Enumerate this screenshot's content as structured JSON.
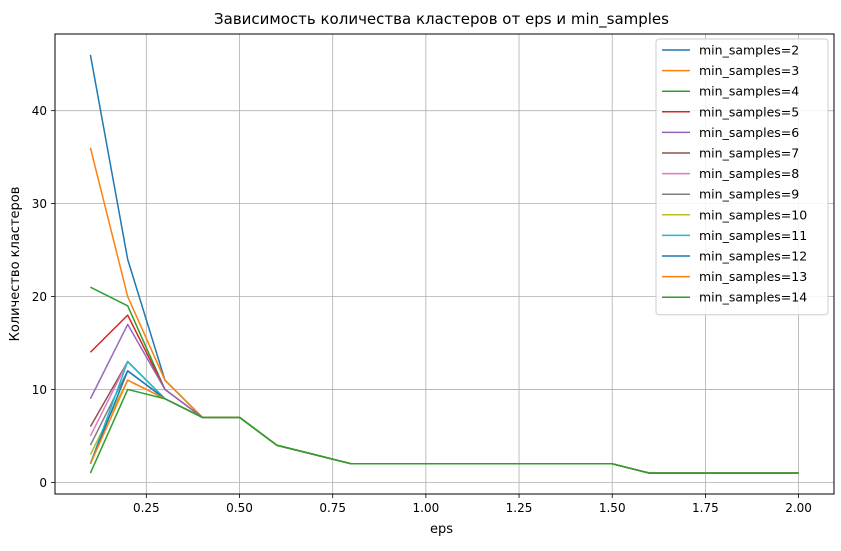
{
  "chart_data": {
    "type": "line",
    "title": "Зависимость количества кластеров от eps и min_samples",
    "xlabel": "eps",
    "ylabel": "Количество кластеров",
    "xlim": [
      0.005,
      2.095
    ],
    "ylim": [
      -1.25,
      48.25
    ],
    "xticks": [
      0.25,
      0.5,
      0.75,
      1.0,
      1.25,
      1.5,
      1.75,
      2.0
    ],
    "xtick_labels": [
      "0.25",
      "0.50",
      "0.75",
      "1.00",
      "1.25",
      "1.50",
      "1.75",
      "2.00"
    ],
    "yticks": [
      0,
      10,
      20,
      30,
      40
    ],
    "ytick_labels": [
      "0",
      "10",
      "20",
      "30",
      "40"
    ],
    "grid": true,
    "legend_position": "top-right",
    "x": [
      0.1,
      0.2,
      0.3,
      0.4,
      0.5,
      0.6,
      0.7,
      0.8,
      0.9,
      1.0,
      1.1,
      1.2,
      1.3,
      1.4,
      1.5,
      1.6,
      1.7,
      1.8,
      1.9,
      2.0
    ],
    "series": [
      {
        "name": "min_samples=2",
        "color": "#1f77b4",
        "values": [
          46,
          24,
          11,
          7,
          7,
          4,
          3,
          2,
          2,
          2,
          2,
          2,
          2,
          2,
          2,
          1,
          1,
          1,
          1,
          1
        ]
      },
      {
        "name": "min_samples=3",
        "color": "#ff7f0e",
        "values": [
          36,
          20,
          11,
          7,
          7,
          4,
          3,
          2,
          2,
          2,
          2,
          2,
          2,
          2,
          2,
          1,
          1,
          1,
          1,
          1
        ]
      },
      {
        "name": "min_samples=4",
        "color": "#2ca02c",
        "values": [
          21,
          19,
          10,
          7,
          7,
          4,
          3,
          2,
          2,
          2,
          2,
          2,
          2,
          2,
          2,
          1,
          1,
          1,
          1,
          1
        ]
      },
      {
        "name": "min_samples=5",
        "color": "#d62728",
        "values": [
          14,
          18,
          10,
          7,
          7,
          4,
          3,
          2,
          2,
          2,
          2,
          2,
          2,
          2,
          2,
          1,
          1,
          1,
          1,
          1
        ]
      },
      {
        "name": "min_samples=6",
        "color": "#9467bd",
        "values": [
          9,
          17,
          10,
          7,
          7,
          4,
          3,
          2,
          2,
          2,
          2,
          2,
          2,
          2,
          2,
          1,
          1,
          1,
          1,
          1
        ]
      },
      {
        "name": "min_samples=7",
        "color": "#8c564b",
        "values": [
          6,
          13,
          9,
          7,
          7,
          4,
          3,
          2,
          2,
          2,
          2,
          2,
          2,
          2,
          2,
          1,
          1,
          1,
          1,
          1
        ]
      },
      {
        "name": "min_samples=8",
        "color": "#e377c2",
        "values": [
          5,
          13,
          9,
          7,
          7,
          4,
          3,
          2,
          2,
          2,
          2,
          2,
          2,
          2,
          2,
          1,
          1,
          1,
          1,
          1
        ]
      },
      {
        "name": "min_samples=9",
        "color": "#7f7f7f",
        "values": [
          4,
          12,
          9,
          7,
          7,
          4,
          3,
          2,
          2,
          2,
          2,
          2,
          2,
          2,
          2,
          1,
          1,
          1,
          1,
          1
        ]
      },
      {
        "name": "min_samples=10",
        "color": "#bcbd22",
        "values": [
          3,
          11,
          9,
          7,
          7,
          4,
          3,
          2,
          2,
          2,
          2,
          2,
          2,
          2,
          2,
          1,
          1,
          1,
          1,
          1
        ]
      },
      {
        "name": "min_samples=11",
        "color": "#17becf",
        "values": [
          2,
          13,
          9,
          7,
          7,
          4,
          3,
          2,
          2,
          2,
          2,
          2,
          2,
          2,
          2,
          1,
          1,
          1,
          1,
          1
        ]
      },
      {
        "name": "min_samples=12",
        "color": "#1f77b4",
        "values": [
          2,
          12,
          9,
          7,
          7,
          4,
          3,
          2,
          2,
          2,
          2,
          2,
          2,
          2,
          2,
          1,
          1,
          1,
          1,
          1
        ]
      },
      {
        "name": "min_samples=13",
        "color": "#ff7f0e",
        "values": [
          2,
          11,
          9,
          7,
          7,
          4,
          3,
          2,
          2,
          2,
          2,
          2,
          2,
          2,
          2,
          1,
          1,
          1,
          1,
          1
        ]
      },
      {
        "name": "min_samples=14",
        "color": "#2ca02c",
        "values": [
          1,
          10,
          9,
          7,
          7,
          4,
          3,
          2,
          2,
          2,
          2,
          2,
          2,
          2,
          2,
          1,
          1,
          1,
          1,
          1
        ]
      }
    ]
  }
}
